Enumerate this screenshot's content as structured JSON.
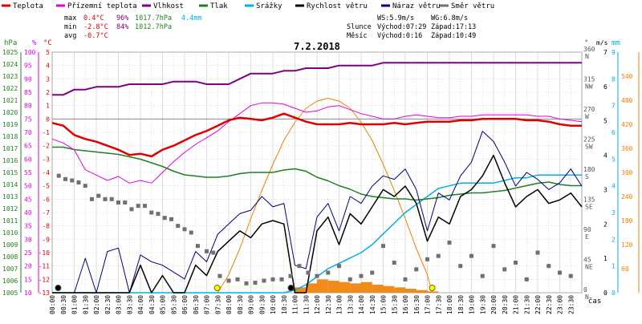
{
  "colors": {
    "teplota": "#e00000",
    "pocitova": "#e000e0",
    "vlhkost": "#800080",
    "tlak": "#208020",
    "srazky": "#00b0e0",
    "rychlost": "#000000",
    "naraz": "#000080",
    "smer": "#707070",
    "slunce": "#f08000",
    "grid": "#c8c8c8"
  },
  "legend": [
    {
      "label": "Teplota",
      "color": "#e00000"
    },
    {
      "label": "Přízemní teplota",
      "color": "#e000e0"
    },
    {
      "label": "Vlhkost",
      "color": "#800080"
    },
    {
      "label": "Tlak",
      "color": "#208020"
    },
    {
      "label": "Srážky",
      "color": "#00b0e0"
    },
    {
      "label": "Rychlost větru",
      "color": "#000000"
    },
    {
      "label": "Náraz větru",
      "color": "#000080"
    },
    {
      "label": "Směr větru",
      "color": "#707070"
    }
  ],
  "stats": {
    "max_label": "max",
    "min_label": "min",
    "avg_label": "avg",
    "max_temp": "0.4°C",
    "max_hum": "96%",
    "max_press": "1017.7hPa",
    "max_rain": "4.4mm",
    "min_temp": "-2.8°C",
    "min_hum": "84%",
    "min_press": "1012.7hPa",
    "avg_temp": "-0.7°C"
  },
  "wind_info": {
    "ws": "WS:5.9m/s",
    "wg": "WG:6.8m/s"
  },
  "sun_info": {
    "label": "Slunce",
    "rise": "Východ:07:29",
    "set": "Západ:17:13"
  },
  "moon_info": {
    "label": "Měsíc",
    "rise": "Východ:0:16",
    "set": "Západ:10:49"
  },
  "chart_data": {
    "type": "line",
    "title": "7.2.2018",
    "xlabel": "čas",
    "x_ticks": [
      "00:00",
      "00:30",
      "01:00",
      "01:30",
      "02:00",
      "02:30",
      "03:00",
      "03:30",
      "04:00",
      "04:30",
      "05:00",
      "05:30",
      "06:00",
      "06:30",
      "07:00",
      "07:30",
      "08:00",
      "08:30",
      "09:00",
      "09:30",
      "10:00",
      "10:30",
      "11:00",
      "11:30",
      "12:00",
      "12:30",
      "13:00",
      "13:30",
      "14:00",
      "14:30",
      "15:00",
      "15:30",
      "16:00",
      "16:30",
      "17:00",
      "17:30",
      "18:00",
      "18:30",
      "19:00",
      "19:30",
      "20:00",
      "20:30",
      "21:00",
      "21:30",
      "22:00",
      "22:30",
      "23:00",
      "23:30"
    ],
    "axes": {
      "hpa": {
        "label": "hPa",
        "min": 1005,
        "max": 1025,
        "step": 1
      },
      "percent": {
        "label": "%",
        "min": 10,
        "max": 100,
        "step": 5
      },
      "celsius": {
        "label": "°C",
        "min": -13,
        "max": 5,
        "step": 1
      },
      "direction": {
        "label": "°",
        "min": 0,
        "max": 360,
        "ticks": [
          {
            "deg": 0,
            "name": "N"
          },
          {
            "deg": 45,
            "name": "NE"
          },
          {
            "deg": 90,
            "name": "E"
          },
          {
            "deg": 135,
            "name": "SE"
          },
          {
            "deg": 180,
            "name": "S"
          },
          {
            "deg": 225,
            "name": "SW"
          },
          {
            "deg": 270,
            "name": "W"
          },
          {
            "deg": 315,
            "name": "NW"
          },
          {
            "deg": 360,
            "name": "N"
          }
        ]
      },
      "rain": {
        "label": "mm",
        "min": 0,
        "max": 9,
        "step": 1
      },
      "wind": {
        "label": "m/s",
        "min": 0,
        "max": 7,
        "step": 1
      },
      "sun": {
        "label": "",
        "min": 0,
        "max": 600,
        "ticks": [
          60,
          120,
          180,
          240,
          300,
          360,
          420,
          480,
          540
        ]
      }
    },
    "series": [
      {
        "name": "Teplota",
        "axis": "celsius",
        "color": "#e00000",
        "x": [
          0,
          0.5,
          1,
          1.5,
          2,
          2.5,
          3,
          3.5,
          4,
          4.5,
          5,
          5.5,
          6,
          6.5,
          7,
          7.5,
          8,
          8.5,
          9,
          9.5,
          10,
          10.5,
          11,
          11.5,
          12,
          12.5,
          13,
          13.5,
          14,
          14.5,
          15,
          15.5,
          16,
          16.5,
          17,
          17.5,
          18,
          18.5,
          19,
          19.5,
          20,
          20.5,
          21,
          21.5,
          22,
          22.5,
          23,
          23.5,
          24
        ],
        "y": [
          -0.3,
          -0.5,
          -1.2,
          -1.5,
          -1.7,
          -2.0,
          -2.3,
          -2.7,
          -2.6,
          -2.8,
          -2.3,
          -2.0,
          -1.6,
          -1.2,
          -0.9,
          -0.5,
          -0.1,
          0.1,
          0.0,
          -0.1,
          0.1,
          0.4,
          0.1,
          -0.2,
          -0.4,
          -0.4,
          -0.4,
          -0.3,
          -0.4,
          -0.4,
          -0.4,
          -0.3,
          -0.4,
          -0.3,
          -0.2,
          -0.2,
          -0.2,
          -0.1,
          -0.1,
          0.0,
          0.0,
          0.0,
          0.0,
          -0.1,
          -0.1,
          -0.2,
          -0.4,
          -0.5,
          -0.5
        ]
      },
      {
        "name": "Přízemní teplota",
        "axis": "celsius",
        "color": "#e000e0",
        "x": [
          0,
          0.5,
          1,
          1.5,
          2,
          2.5,
          3,
          3.5,
          4,
          4.5,
          5,
          5.5,
          6,
          6.5,
          7,
          7.5,
          8,
          8.5,
          9,
          9.5,
          10,
          10.5,
          11,
          11.5,
          12,
          12.5,
          13,
          13.5,
          14,
          14.5,
          15,
          15.5,
          16,
          16.5,
          17,
          17.5,
          18,
          18.5,
          19,
          19.5,
          20,
          20.5,
          21,
          21.5,
          22,
          22.5,
          23,
          23.5,
          24
        ],
        "y": [
          -1.5,
          -1.8,
          -2.3,
          -3.8,
          -4.2,
          -4.6,
          -4.3,
          -4.8,
          -4.6,
          -4.8,
          -4.0,
          -3.2,
          -2.5,
          -1.9,
          -1.4,
          -0.9,
          -0.2,
          0.4,
          1.0,
          1.2,
          1.2,
          1.1,
          0.8,
          0.5,
          0.6,
          0.9,
          1.0,
          0.7,
          0.4,
          0.2,
          0.0,
          0.0,
          0.2,
          0.3,
          0.2,
          0.1,
          0.1,
          0.2,
          0.2,
          0.3,
          0.3,
          0.3,
          0.3,
          0.3,
          0.2,
          0.2,
          0.0,
          -0.1,
          -0.2
        ]
      },
      {
        "name": "Vlhkost",
        "axis": "percent",
        "color": "#800080",
        "x": [
          0,
          0.5,
          1,
          1.5,
          2,
          2.5,
          3,
          3.5,
          4,
          4.5,
          5,
          5.5,
          6,
          6.5,
          7,
          7.5,
          8,
          8.5,
          9,
          9.5,
          10,
          10.5,
          11,
          11.5,
          12,
          12.5,
          13,
          13.5,
          14,
          14.5,
          15,
          15.5,
          16,
          16.5,
          17,
          17.5,
          18,
          18.5,
          19,
          19.5,
          20,
          20.5,
          21,
          21.5,
          22,
          22.5,
          23,
          23.5,
          24
        ],
        "y": [
          84,
          84,
          86,
          86,
          87,
          87,
          87,
          88,
          88,
          88,
          88,
          89,
          89,
          89,
          88,
          88,
          88,
          90,
          92,
          92,
          92,
          93,
          93,
          94,
          94,
          94,
          95,
          95,
          95,
          95,
          96,
          96,
          96,
          96,
          96,
          96,
          96,
          96,
          96,
          96,
          96,
          96,
          96,
          96,
          96,
          96,
          96,
          96,
          96
        ]
      },
      {
        "name": "Tlak",
        "axis": "hpa",
        "color": "#208020",
        "x": [
          0,
          0.5,
          1,
          1.5,
          2,
          2.5,
          3,
          3.5,
          4,
          4.5,
          5,
          5.5,
          6,
          6.5,
          7,
          7.5,
          8,
          8.5,
          9,
          9.5,
          10,
          10.5,
          11,
          11.5,
          12,
          12.5,
          13,
          13.5,
          14,
          14.5,
          15,
          15.5,
          16,
          16.5,
          17,
          17.5,
          18,
          18.5,
          19,
          19.5,
          20,
          20.5,
          21,
          21.5,
          22,
          22.5,
          23,
          23.5,
          24
        ],
        "y": [
          1017.1,
          1017.1,
          1016.9,
          1016.8,
          1016.7,
          1016.6,
          1016.5,
          1016.3,
          1016.1,
          1015.8,
          1015.5,
          1015.1,
          1014.8,
          1014.7,
          1014.6,
          1014.6,
          1014.7,
          1014.9,
          1015.0,
          1015.0,
          1015.0,
          1015.2,
          1015.3,
          1015.1,
          1014.6,
          1014.3,
          1013.9,
          1013.6,
          1013.2,
          1013.0,
          1012.9,
          1012.8,
          1012.8,
          1012.7,
          1012.8,
          1012.9,
          1013.1,
          1013.2,
          1013.3,
          1013.3,
          1013.4,
          1013.5,
          1013.7,
          1013.9,
          1014.1,
          1014.2,
          1014.0,
          1013.9,
          1013.9
        ]
      },
      {
        "name": "Srážky",
        "axis": "rain",
        "color": "#00b0e0",
        "x": [
          0,
          10.5,
          11.0,
          11.5,
          12.0,
          12.5,
          13.0,
          13.5,
          14.0,
          14.5,
          15.0,
          15.5,
          16.0,
          16.5,
          17.0,
          17.5,
          18.0,
          18.5,
          19.0,
          19.5,
          20.0,
          20.5,
          21.0,
          21.5,
          22.0,
          22.5,
          23.0,
          23.5,
          24
        ],
        "y": [
          0,
          0,
          0.1,
          0.3,
          0.6,
          0.9,
          1.1,
          1.3,
          1.5,
          1.8,
          2.2,
          2.6,
          3.0,
          3.3,
          3.6,
          3.9,
          4.0,
          4.1,
          4.1,
          4.1,
          4.1,
          4.2,
          4.3,
          4.3,
          4.4,
          4.4,
          4.4,
          4.4,
          4.4
        ]
      },
      {
        "name": "Rychlost větru",
        "axis": "wind",
        "color": "#000000",
        "x": [
          0,
          1,
          1.5,
          2,
          2.5,
          3,
          3.5,
          4,
          4.5,
          5,
          5.5,
          6,
          6.5,
          7,
          7.5,
          8,
          8.5,
          9,
          9.5,
          10,
          10.5,
          11,
          11.5,
          12,
          12.5,
          13,
          13.5,
          14,
          14.5,
          15,
          15.5,
          16,
          16.5,
          17,
          17.5,
          18,
          18.5,
          19,
          19.5,
          20,
          20.5,
          21,
          21.5,
          22,
          22.5,
          23,
          23.5,
          24
        ],
        "y": [
          0,
          0,
          0,
          0,
          0,
          0,
          0,
          0.8,
          0,
          0.5,
          0,
          0,
          0.8,
          0.5,
          1.2,
          1.5,
          1.8,
          1.6,
          2.0,
          2.1,
          2.0,
          0,
          0,
          1.8,
          2.2,
          1.4,
          2.3,
          2.0,
          2.5,
          3.0,
          2.8,
          3.1,
          2.6,
          1.5,
          2.2,
          2.0,
          2.8,
          3.0,
          3.4,
          4.0,
          3.2,
          2.5,
          2.8,
          3.0,
          2.6,
          2.7,
          2.9,
          2.5
        ]
      },
      {
        "name": "Náraz větru",
        "axis": "wind",
        "color": "#000080",
        "x": [
          0,
          1,
          1.5,
          2,
          2.5,
          3,
          3.5,
          4,
          4.5,
          5,
          5.5,
          6,
          6.5,
          7,
          7.5,
          8,
          8.5,
          9,
          9.5,
          10,
          10.5,
          11,
          11.5,
          12,
          12.5,
          13,
          13.5,
          14,
          14.5,
          15,
          15.5,
          16,
          16.5,
          17,
          17.5,
          18,
          18.5,
          19,
          19.5,
          20,
          20.5,
          21,
          21.5,
          22,
          22.5,
          23,
          23.5,
          24
        ],
        "y": [
          0,
          0,
          1.0,
          0,
          1.2,
          1.3,
          0,
          1.1,
          0.9,
          0.8,
          0.6,
          0.4,
          1.2,
          0.9,
          1.7,
          2.0,
          2.3,
          2.4,
          2.8,
          2.5,
          2.6,
          0.8,
          0.7,
          2.2,
          2.6,
          1.8,
          2.8,
          2.6,
          3.1,
          3.4,
          3.3,
          3.6,
          3.0,
          1.8,
          2.9,
          2.7,
          3.4,
          3.8,
          4.7,
          4.4,
          3.8,
          3.1,
          3.5,
          3.3,
          3.0,
          3.2,
          3.6,
          3.1
        ]
      },
      {
        "name": "Slunce",
        "axis": "sun",
        "color": "#f08000",
        "x": [
          7.5,
          8,
          8.5,
          9,
          9.5,
          10,
          10.5,
          11,
          11.5,
          12,
          12.5,
          13,
          13.5,
          14,
          14.5,
          15,
          15.5,
          16,
          16.5,
          17,
          17.22
        ],
        "y": [
          0,
          45,
          110,
          185,
          255,
          320,
          380,
          425,
          460,
          478,
          485,
          478,
          460,
          425,
          380,
          320,
          255,
          185,
          110,
          45,
          0
        ]
      }
    ],
    "wind_direction_points": {
      "x": [
        0.3,
        0.6,
        0.9,
        1.2,
        1.5,
        1.8,
        2.1,
        2.4,
        2.7,
        3.0,
        3.3,
        3.6,
        3.9,
        4.2,
        4.5,
        4.8,
        5.1,
        5.4,
        5.7,
        6.0,
        6.3,
        6.6,
        7.0,
        7.3,
        7.6,
        8.0,
        8.4,
        8.8,
        9.2,
        9.6,
        10.0,
        10.4,
        10.8,
        11.2,
        11.6,
        12.0,
        12.5,
        13.0,
        13.5,
        14.0,
        14.5,
        15.0,
        15.5,
        16.0,
        16.5,
        17.0,
        17.5,
        18.0,
        18.5,
        19.0,
        19.5,
        20.0,
        20.5,
        21.0,
        21.5,
        22.0,
        22.5,
        23.0,
        23.5
      ],
      "deg": [
        175,
        170,
        168,
        165,
        160,
        140,
        145,
        140,
        140,
        135,
        135,
        125,
        130,
        130,
        120,
        118,
        112,
        110,
        100,
        95,
        90,
        70,
        62,
        60,
        25,
        18,
        20,
        14,
        15,
        18,
        20,
        20,
        25,
        40,
        30,
        25,
        30,
        40,
        20,
        25,
        30,
        70,
        45,
        20,
        35,
        50,
        55,
        75,
        40,
        55,
        25,
        70,
        35,
        45,
        20,
        60,
        40,
        30,
        25
      ]
    },
    "rain_bars": {
      "x": [
        11.0,
        11.5,
        12.0,
        12.5,
        13.0,
        13.5,
        14.0,
        14.5,
        15.0,
        15.5,
        16.0,
        16.5,
        17.0
      ],
      "y": [
        0.2,
        0.35,
        0.5,
        0.45,
        0.4,
        0.35,
        0.4,
        0.3,
        0.25,
        0.2,
        0.15,
        0.1,
        0.05
      ]
    },
    "markers": {
      "sunrise": 7.48,
      "sunset": 17.22,
      "moonrise": 0.27,
      "moonset": 10.82
    },
    "grid": true,
    "legend_position": "top-left"
  }
}
